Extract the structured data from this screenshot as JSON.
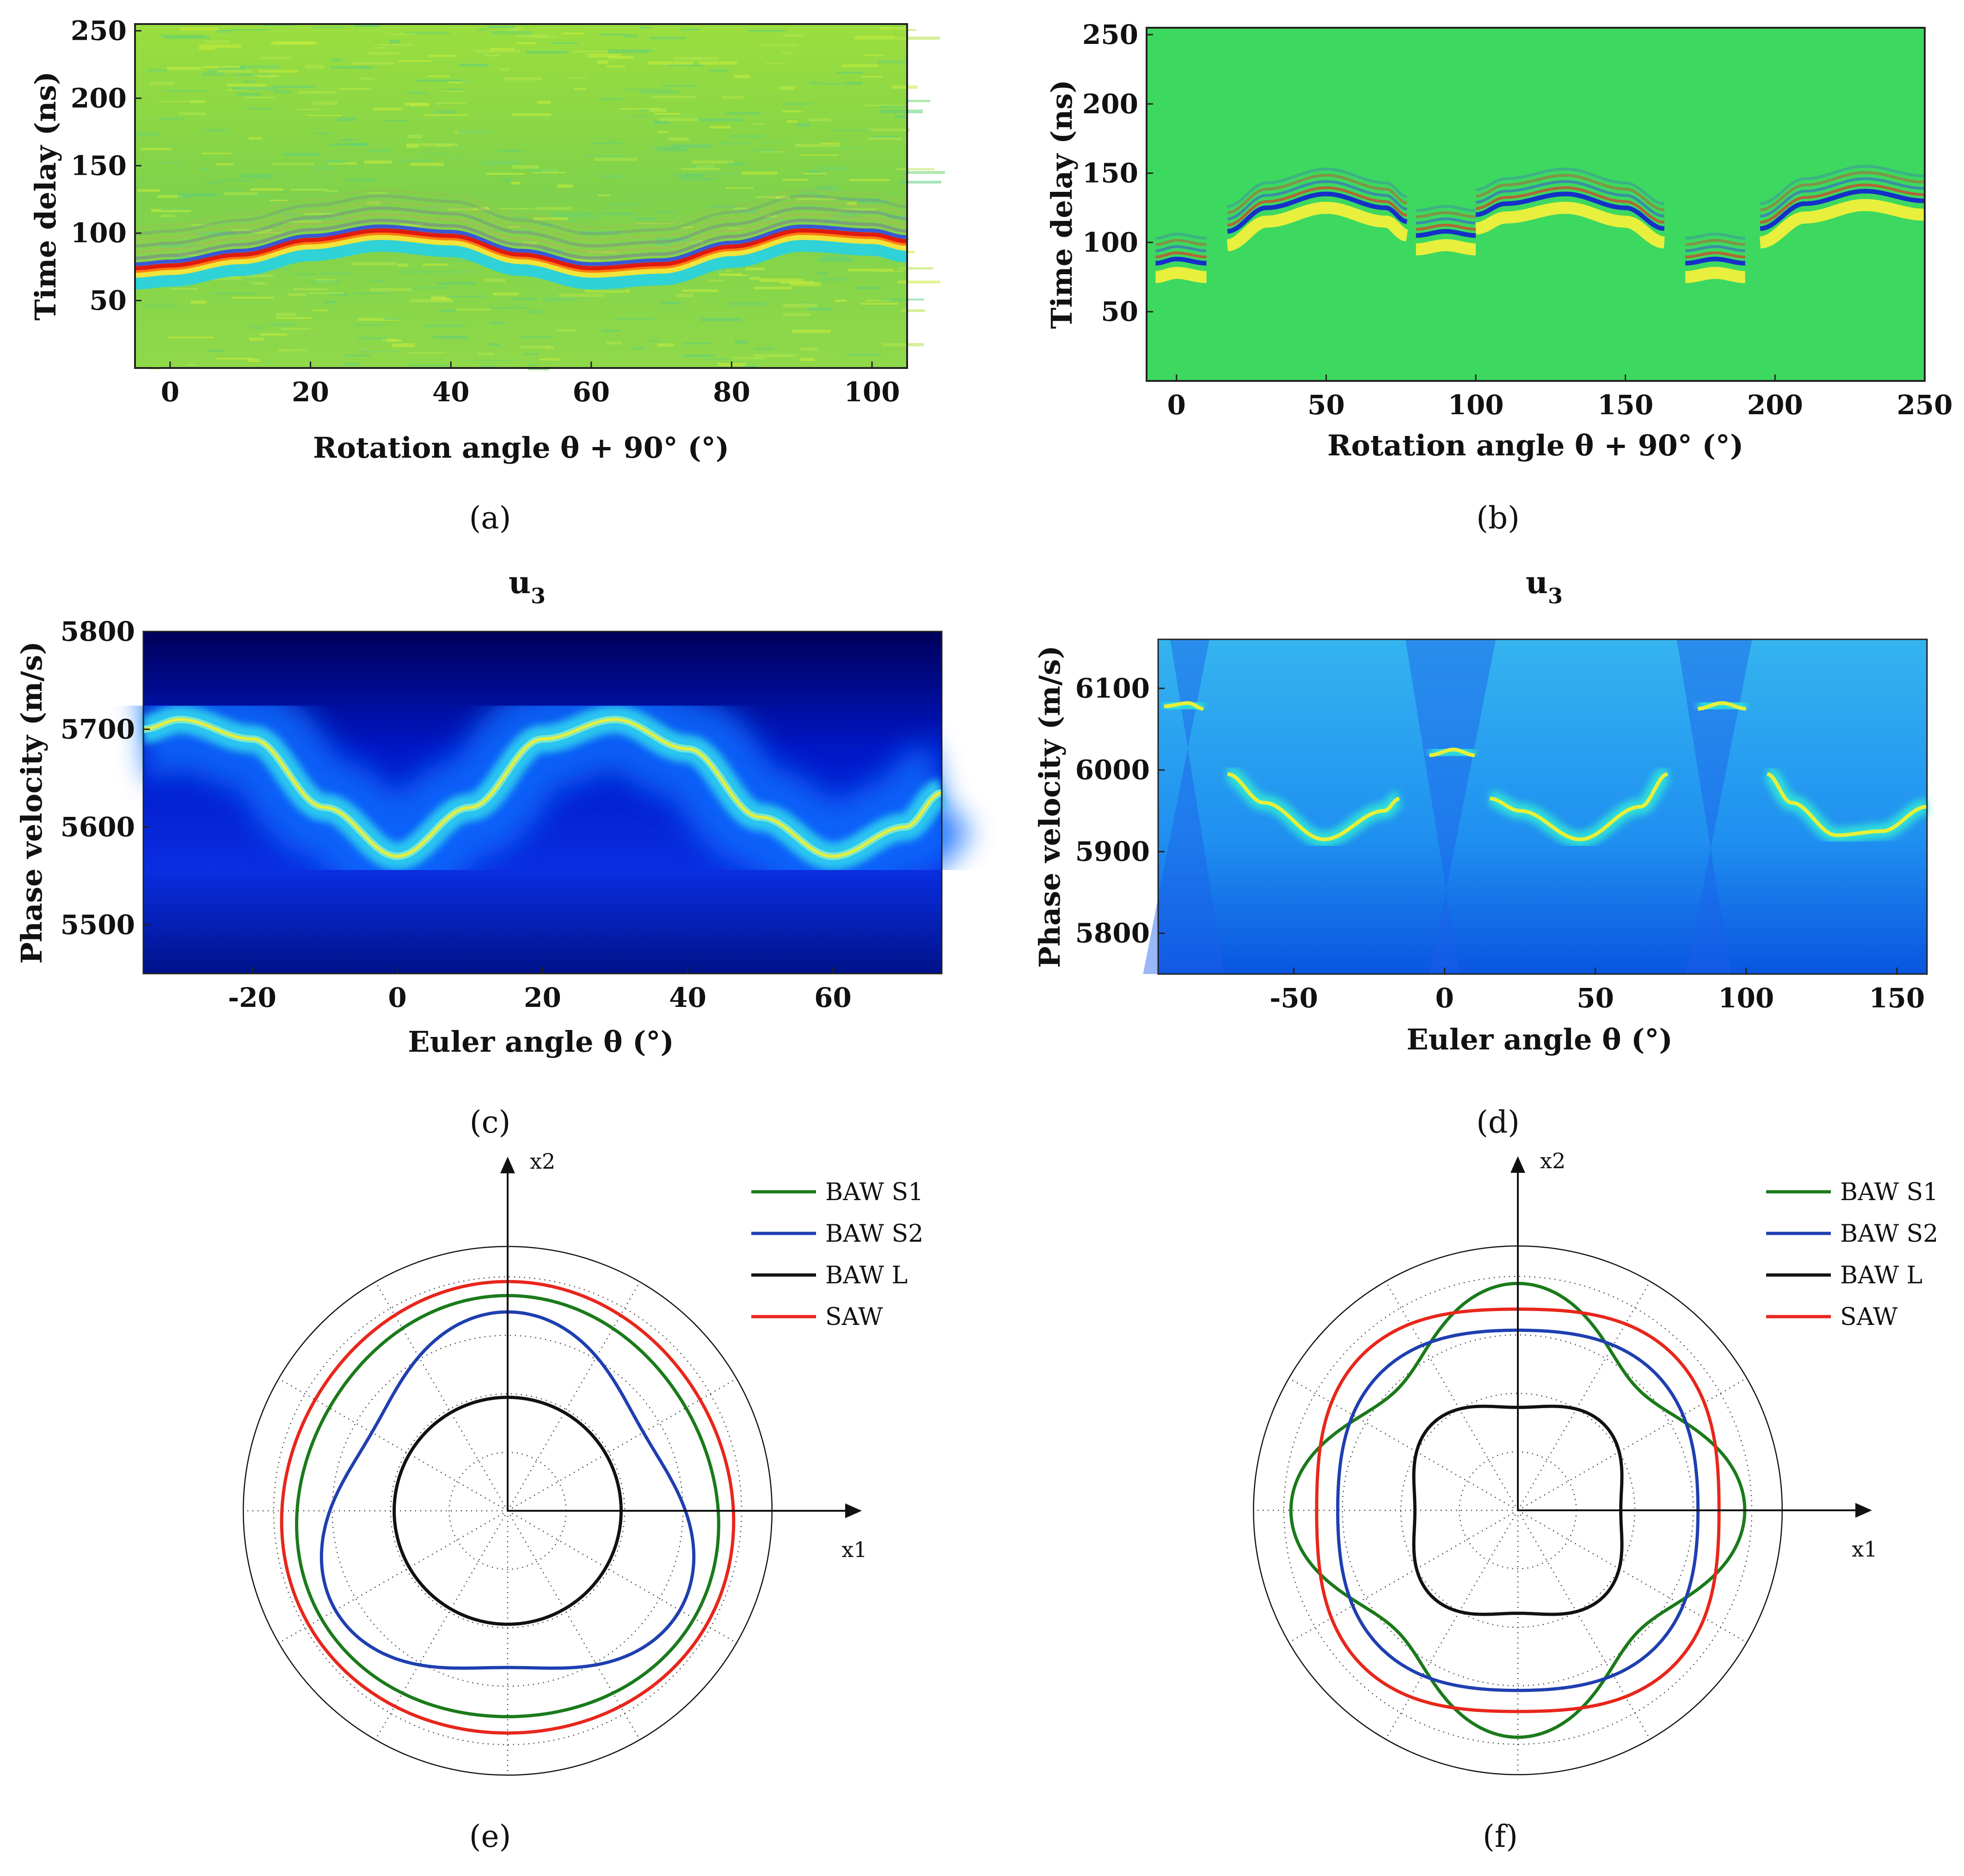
{
  "panel_captions": [
    "(a)",
    "(b)",
    "(c)",
    "(d)",
    "(e)",
    "(f)"
  ],
  "chart_data": [
    {
      "id": "a",
      "type": "heatmap",
      "xlabel": "Rotation angle  θ + 90°   (°)",
      "ylabel": "Time delay  (ns)",
      "xlim": [
        -5,
        105
      ],
      "ylim": [
        0,
        255
      ],
      "xticks": [
        0,
        20,
        40,
        60,
        80,
        100
      ],
      "yticks": [
        50,
        100,
        150,
        200,
        250
      ],
      "colormap": "jet",
      "ridge": {
        "x": [
          -5,
          0,
          10,
          20,
          30,
          40,
          50,
          60,
          70,
          80,
          90,
          100,
          105
        ],
        "y": [
          73,
          75,
          83,
          94,
          101,
          97,
          83,
          73,
          76,
          89,
          101,
          98,
          93
        ]
      }
    },
    {
      "id": "b",
      "type": "heatmap",
      "xlabel": "Rotation angle  θ + 90°   (°)",
      "ylabel": "Time delay  (ns)",
      "xlim": [
        -10,
        250
      ],
      "ylim": [
        0,
        255
      ],
      "xticks": [
        0,
        50,
        100,
        150,
        200,
        250
      ],
      "yticks": [
        50,
        100,
        150,
        200,
        250
      ],
      "colormap": "jet",
      "segments": [
        {
          "x": [
            -7,
            0,
            10
          ],
          "y": [
            85,
            88,
            85
          ]
        },
        {
          "x": [
            17,
            30,
            50,
            70,
            77
          ],
          "y": [
            108,
            125,
            135,
            125,
            115
          ]
        },
        {
          "x": [
            80,
            90,
            100
          ],
          "y": [
            105,
            108,
            105
          ]
        },
        {
          "x": [
            100,
            110,
            130,
            150,
            163
          ],
          "y": [
            120,
            128,
            135,
            125,
            110
          ]
        },
        {
          "x": [
            170,
            180,
            190
          ],
          "y": [
            85,
            88,
            85
          ]
        },
        {
          "x": [
            195,
            210,
            230,
            250
          ],
          "y": [
            110,
            128,
            137,
            130
          ]
        }
      ]
    },
    {
      "id": "c",
      "type": "heatmap",
      "title": "u",
      "title_sub": "3",
      "xlabel": "Euler angle  θ  (°)",
      "ylabel": "Phase velocity  (m/s)",
      "xlim": [
        -35,
        75
      ],
      "ylim": [
        5450,
        5800
      ],
      "xticks": [
        -20,
        0,
        20,
        40,
        60
      ],
      "yticks": [
        5500,
        5600,
        5700,
        5800
      ],
      "colormap": "jet",
      "curve": {
        "x": [
          -35,
          -30,
          -20,
          -10,
          0,
          10,
          20,
          30,
          40,
          50,
          60,
          70,
          75
        ],
        "y": [
          5700,
          5710,
          5690,
          5620,
          5570,
          5620,
          5690,
          5710,
          5680,
          5610,
          5570,
          5600,
          5635
        ]
      }
    },
    {
      "id": "d",
      "type": "heatmap",
      "title": "u",
      "title_sub": "3",
      "xlabel": "Euler angle  θ  (°)",
      "ylabel": "Phase velocity  (m/s)",
      "xlim": [
        -95,
        160
      ],
      "ylim": [
        5750,
        6160
      ],
      "xticks": [
        -50,
        0,
        50,
        100,
        150
      ],
      "yticks": [
        5800,
        5900,
        6000,
        6100
      ],
      "colormap": "jet",
      "segments": [
        {
          "x": [
            -93,
            -85,
            -80
          ],
          "y": [
            6078,
            6082,
            6075
          ]
        },
        {
          "x": [
            -72,
            -60,
            -40,
            -20,
            -15
          ],
          "y": [
            5995,
            5960,
            5915,
            5950,
            5965
          ]
        },
        {
          "x": [
            -5,
            3,
            10
          ],
          "y": [
            6018,
            6025,
            6018
          ]
        },
        {
          "x": [
            15,
            25,
            45,
            65,
            74
          ],
          "y": [
            5965,
            5950,
            5915,
            5955,
            5995
          ]
        },
        {
          "x": [
            84,
            92,
            100
          ],
          "y": [
            6075,
            6082,
            6075
          ]
        },
        {
          "x": [
            107,
            115,
            130,
            145,
            160
          ],
          "y": [
            5995,
            5960,
            5920,
            5925,
            5955
          ]
        }
      ]
    },
    {
      "id": "e",
      "type": "polar",
      "axis_labels": [
        "x1",
        "x2"
      ],
      "series": [
        {
          "name": "BAW S1",
          "color": "#1a7a1a",
          "r0": 0.9,
          "amp": 0.02,
          "n": 3,
          "phase": 90
        },
        {
          "name": "BAW S2",
          "color": "#1f3fb0",
          "r0": 0.76,
          "amp": 0.09,
          "n": 3,
          "phase": 90
        },
        {
          "name": "BAW L",
          "color": "#111111",
          "r0": 0.485,
          "amp": 0.0,
          "n": 4,
          "phase": 0
        },
        {
          "name": "SAW",
          "color": "#e8261b",
          "r0": 0.965,
          "amp": 0.015,
          "n": 3,
          "phase": 90
        }
      ]
    },
    {
      "id": "f",
      "type": "polar",
      "axis_labels": [
        "x1",
        "x2"
      ],
      "series": [
        {
          "name": "BAW S1",
          "color": "#1a7a1a",
          "r0": 0.85,
          "amp": 0.12,
          "n": 4,
          "phase": 0
        },
        {
          "name": "BAW S2",
          "color": "#1f3fb0",
          "r0": 0.8,
          "amp": 0.03,
          "n": 4,
          "phase": 45
        },
        {
          "name": "BAW L",
          "color": "#111111",
          "r0": 0.48,
          "amp": 0.04,
          "n": 4,
          "phase": 45
        },
        {
          "name": "SAW",
          "color": "#e8261b",
          "r0": 0.9,
          "amp": 0.04,
          "n": 4,
          "phase": 45
        }
      ]
    }
  ]
}
